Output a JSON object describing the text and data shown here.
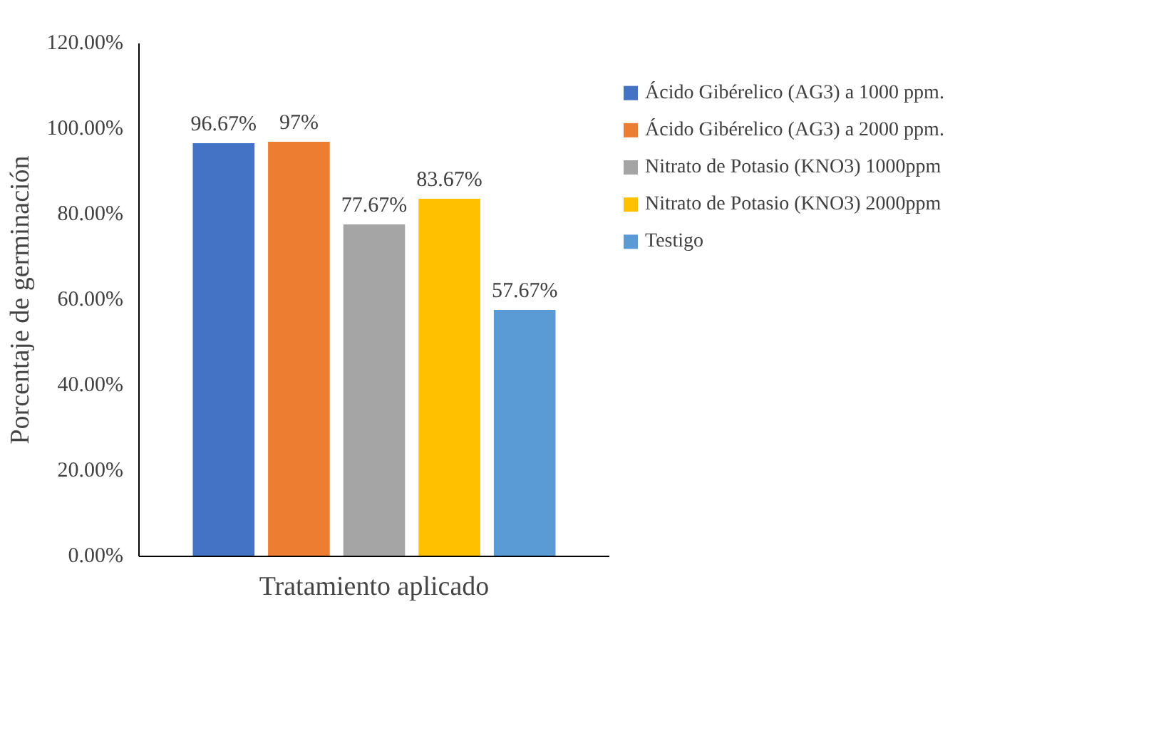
{
  "chart_data": {
    "type": "bar",
    "xlabel": "Tratamiento aplicado",
    "ylabel": "Porcentaje de germinación",
    "categories": [
      null
    ],
    "series": [
      {
        "name": "Ácido Gibérelico (AG3) a 1000 ppm.",
        "color": "#4472c4",
        "values": [
          96.67
        ],
        "value_labels": [
          "96.67%"
        ]
      },
      {
        "name": "Ácido Gibérelico (AG3) a 2000 ppm.",
        "color": "#ed7d31",
        "values": [
          97
        ],
        "value_labels": [
          "97%"
        ]
      },
      {
        "name": "Nitrato de Potasio (KNO3) 1000ppm",
        "color": "#a5a5a5",
        "values": [
          77.67
        ],
        "value_labels": [
          "77.67%"
        ]
      },
      {
        "name": "Nitrato de Potasio (KNO3) 2000ppm",
        "color": "#ffc000",
        "values": [
          83.67
        ],
        "value_labels": [
          "83.67%"
        ]
      },
      {
        "name": "Testigo",
        "color": "#5b9bd5",
        "values": [
          57.67
        ],
        "value_labels": [
          "57.67%"
        ]
      }
    ],
    "ylim": [
      0,
      120
    ],
    "yticks": [
      {
        "value": 0,
        "label": "0.00%"
      },
      {
        "value": 20,
        "label": "20.00%"
      },
      {
        "value": 40,
        "label": "40.00%"
      },
      {
        "value": 60,
        "label": "60.00%"
      },
      {
        "value": 80,
        "label": "80.00%"
      },
      {
        "value": 100,
        "label": "100.00%"
      },
      {
        "value": 120,
        "label": "120.00%"
      }
    ],
    "grid": false,
    "legend": "right"
  }
}
